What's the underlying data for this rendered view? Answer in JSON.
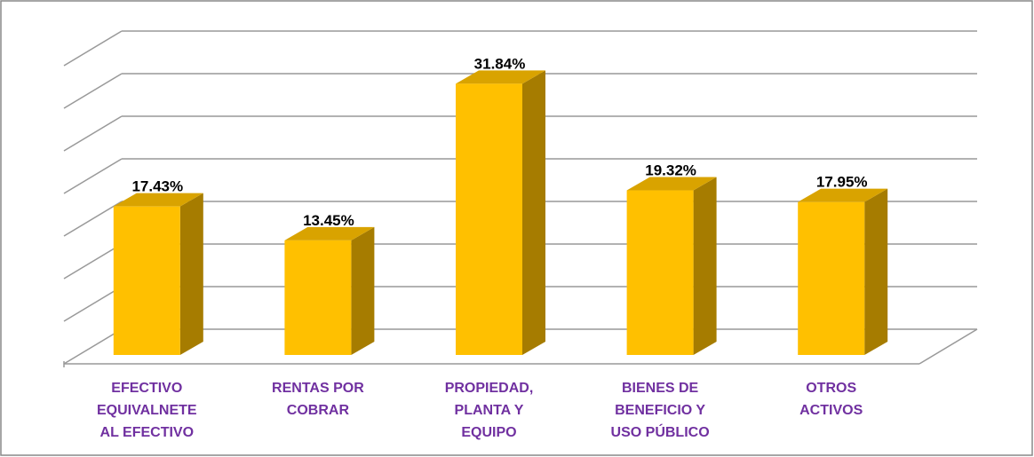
{
  "chart_data": {
    "type": "bar3d",
    "categories": [
      "EFECTIVO EQUIVALNETE AL EFECTIVO",
      "RENTAS POR COBRAR",
      "PROPIEDAD, PLANTA Y EQUIPO",
      "BIENES DE BENEFICIO Y USO PÚBLICO",
      "OTROS ACTIVOS"
    ],
    "values": [
      17.43,
      13.45,
      31.84,
      19.32,
      17.95
    ],
    "value_labels": [
      "17.43%",
      "13.45%",
      "31.84%",
      "19.32%",
      "17.95%"
    ],
    "color": "#ffc000",
    "ylim": [
      0,
      35
    ],
    "yticks": [
      0,
      5,
      10,
      15,
      20,
      25,
      30,
      35
    ],
    "grid": true
  }
}
